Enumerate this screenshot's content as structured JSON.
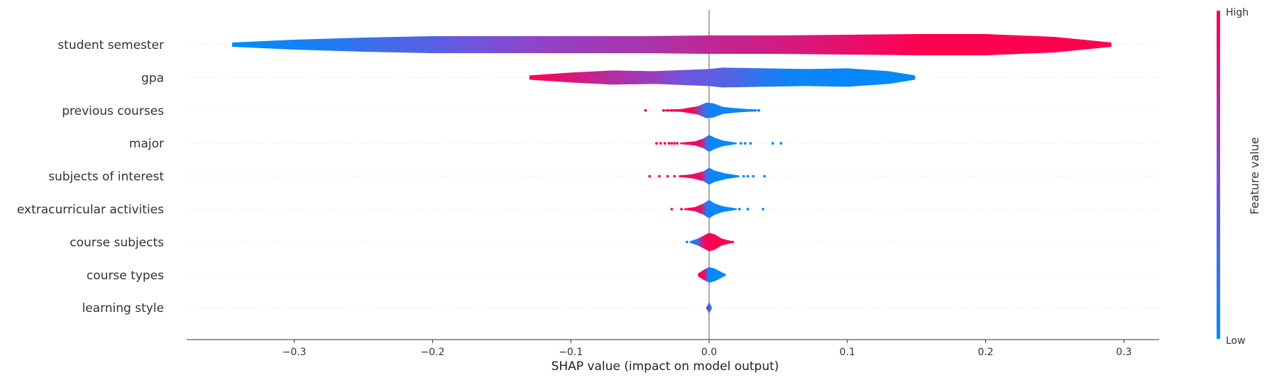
{
  "chart_data": {
    "type": "violin",
    "xlabel": "SHAP value (impact on model output)",
    "xticks": [
      -0.3,
      -0.2,
      -0.1,
      0.0,
      0.1,
      0.2,
      0.3
    ],
    "xtick_labels": [
      "−0.3",
      "−0.2",
      "−0.1",
      "0.0",
      "0.1",
      "0.2",
      "0.3"
    ],
    "xlim": [
      -0.377,
      0.325
    ],
    "colorbar": {
      "label": "Feature value",
      "high": "High",
      "low": "Low",
      "high_color": "#ff0051",
      "low_color": "#008bfb"
    },
    "features": [
      {
        "name": "student semester",
        "min": -0.345,
        "max": 0.291,
        "profile": [
          [
            -0.345,
            3
          ],
          [
            -0.3,
            7
          ],
          [
            -0.25,
            10
          ],
          [
            -0.2,
            12
          ],
          [
            -0.15,
            12
          ],
          [
            -0.1,
            12
          ],
          [
            -0.05,
            12
          ],
          [
            0.0,
            13
          ],
          [
            0.05,
            13
          ],
          [
            0.1,
            14
          ],
          [
            0.15,
            15
          ],
          [
            0.2,
            15
          ],
          [
            0.25,
            11
          ],
          [
            0.291,
            3
          ]
        ],
        "color": [
          [
            -0.345,
            0
          ],
          [
            -0.28,
            0.1
          ],
          [
            -0.24,
            0.25
          ],
          [
            -0.2,
            0.35
          ],
          [
            -0.17,
            0.45
          ],
          [
            -0.13,
            0.55
          ],
          [
            -0.1,
            0.6
          ],
          [
            -0.06,
            0.65
          ],
          [
            -0.025,
            0.7
          ],
          [
            0.0,
            0.75
          ],
          [
            0.05,
            0.82
          ],
          [
            0.1,
            0.9
          ],
          [
            0.15,
            1
          ],
          [
            0.291,
            1
          ]
        ]
      },
      {
        "name": "gpa",
        "min": -0.13,
        "max": 0.149,
        "profile": [
          [
            -0.13,
            3
          ],
          [
            -0.1,
            7
          ],
          [
            -0.07,
            10
          ],
          [
            -0.04,
            9
          ],
          [
            0.0,
            12
          ],
          [
            0.01,
            14
          ],
          [
            0.04,
            13
          ],
          [
            0.07,
            12
          ],
          [
            0.1,
            13
          ],
          [
            0.13,
            9
          ],
          [
            0.149,
            3
          ]
        ],
        "color": [
          [
            -0.13,
            1
          ],
          [
            -0.1,
            0.85
          ],
          [
            -0.07,
            0.7
          ],
          [
            -0.04,
            0.6
          ],
          [
            -0.02,
            0.45
          ],
          [
            0.0,
            0.38
          ],
          [
            0.02,
            0.3
          ],
          [
            0.04,
            0.15
          ],
          [
            0.06,
            0.05
          ],
          [
            0.149,
            0
          ]
        ],
        "dots": []
      },
      {
        "name": "previous courses",
        "min": -0.03,
        "max": 0.035,
        "profile": [
          [
            -0.033,
            1
          ],
          [
            -0.02,
            2
          ],
          [
            -0.008,
            6
          ],
          [
            -0.002,
            11
          ],
          [
            0.003,
            10
          ],
          [
            0.01,
            5
          ],
          [
            0.02,
            3
          ],
          [
            0.035,
            1
          ]
        ],
        "color": [
          [
            -0.033,
            1
          ],
          [
            -0.012,
            0.95
          ],
          [
            -0.004,
            0.3
          ],
          [
            0.0,
            0.08
          ],
          [
            0.035,
            0
          ]
        ],
        "dots": [
          [
            -0.046,
            1
          ],
          [
            -0.033,
            1
          ],
          [
            -0.03,
            1
          ],
          [
            -0.027,
            1
          ],
          [
            -0.024,
            1
          ],
          [
            -0.021,
            1
          ],
          [
            0.022,
            0
          ],
          [
            0.025,
            0
          ],
          [
            0.028,
            0
          ],
          [
            0.031,
            0
          ],
          [
            0.033,
            0
          ],
          [
            0.036,
            0
          ]
        ]
      },
      {
        "name": "major",
        "min": -0.02,
        "max": 0.02,
        "profile": [
          [
            -0.021,
            1
          ],
          [
            -0.01,
            3
          ],
          [
            -0.004,
            7
          ],
          [
            0.0,
            12
          ],
          [
            0.004,
            8
          ],
          [
            0.01,
            4
          ],
          [
            0.02,
            1
          ]
        ],
        "color": [
          [
            -0.021,
            1
          ],
          [
            -0.006,
            0.9
          ],
          [
            -0.002,
            0.3
          ],
          [
            0.0,
            0.05
          ],
          [
            0.02,
            0
          ]
        ],
        "dots": [
          [
            -0.038,
            1
          ],
          [
            -0.035,
            1
          ],
          [
            -0.032,
            1
          ],
          [
            -0.029,
            1
          ],
          [
            -0.027,
            1
          ],
          [
            -0.025,
            1
          ],
          [
            -0.023,
            1
          ],
          [
            0.023,
            0
          ],
          [
            0.026,
            0
          ],
          [
            0.03,
            0
          ],
          [
            0.046,
            0
          ],
          [
            0.052,
            0
          ]
        ]
      },
      {
        "name": "subjects of interest",
        "min": -0.022,
        "max": 0.022,
        "profile": [
          [
            -0.022,
            1
          ],
          [
            -0.012,
            3
          ],
          [
            -0.004,
            7
          ],
          [
            0.0,
            12
          ],
          [
            0.004,
            8
          ],
          [
            0.012,
            4
          ],
          [
            0.022,
            1
          ]
        ],
        "color": [
          [
            -0.022,
            1
          ],
          [
            -0.006,
            0.9
          ],
          [
            -0.002,
            0.3
          ],
          [
            0.0,
            0.05
          ],
          [
            0.022,
            0
          ]
        ],
        "dots": [
          [
            -0.043,
            1
          ],
          [
            -0.036,
            1
          ],
          [
            -0.03,
            1
          ],
          [
            -0.025,
            1
          ],
          [
            -0.02,
            1
          ],
          [
            0.025,
            0
          ],
          [
            0.028,
            0
          ],
          [
            0.032,
            0
          ],
          [
            0.04,
            0
          ]
        ]
      },
      {
        "name": "extracurricular activities",
        "min": -0.018,
        "max": 0.02,
        "profile": [
          [
            -0.018,
            1
          ],
          [
            -0.01,
            3
          ],
          [
            -0.004,
            8
          ],
          [
            0.0,
            13
          ],
          [
            0.004,
            8
          ],
          [
            0.01,
            4
          ],
          [
            0.02,
            1
          ]
        ],
        "color": [
          [
            -0.018,
            1
          ],
          [
            -0.006,
            0.9
          ],
          [
            -0.002,
            0.2
          ],
          [
            0.0,
            0.05
          ],
          [
            0.02,
            0
          ]
        ],
        "dots": [
          [
            -0.027,
            1
          ],
          [
            -0.02,
            1
          ],
          [
            0.022,
            0
          ],
          [
            0.028,
            0
          ],
          [
            0.039,
            0
          ]
        ]
      },
      {
        "name": "course subjects",
        "min": -0.014,
        "max": 0.017,
        "profile": [
          [
            -0.014,
            1
          ],
          [
            -0.008,
            5
          ],
          [
            -0.003,
            10
          ],
          [
            0.0,
            13
          ],
          [
            0.004,
            11
          ],
          [
            0.009,
            5
          ],
          [
            0.017,
            1
          ]
        ],
        "color": [
          [
            -0.014,
            0
          ],
          [
            -0.009,
            0.2
          ],
          [
            -0.005,
            0.8
          ],
          [
            -0.002,
            1
          ],
          [
            0.017,
            1
          ]
        ],
        "dots": [
          [
            -0.016,
            0
          ],
          [
            0.015,
            1
          ],
          [
            0.017,
            1
          ]
        ]
      },
      {
        "name": "course types",
        "min": -0.008,
        "max": 0.012,
        "profile": [
          [
            -0.008,
            2
          ],
          [
            -0.004,
            7
          ],
          [
            0.0,
            11
          ],
          [
            0.004,
            9
          ],
          [
            0.008,
            5
          ],
          [
            0.012,
            1
          ]
        ],
        "color": [
          [
            -0.008,
            1
          ],
          [
            -0.003,
            0.9
          ],
          [
            -0.001,
            0.1
          ],
          [
            0.0,
            0.05
          ],
          [
            0.012,
            0
          ]
        ],
        "dots": [
          [
            0.011,
            0
          ]
        ]
      },
      {
        "name": "learning style",
        "min": -0.002,
        "max": 0.002,
        "profile": [
          [
            -0.002,
            1
          ],
          [
            0.0,
            8
          ],
          [
            0.002,
            1
          ]
        ],
        "color": [
          [
            -0.002,
            0.3
          ],
          [
            0.0,
            0.1
          ],
          [
            0.002,
            0
          ]
        ],
        "dots": [
          [
            -0.001,
            1
          ]
        ]
      }
    ]
  }
}
